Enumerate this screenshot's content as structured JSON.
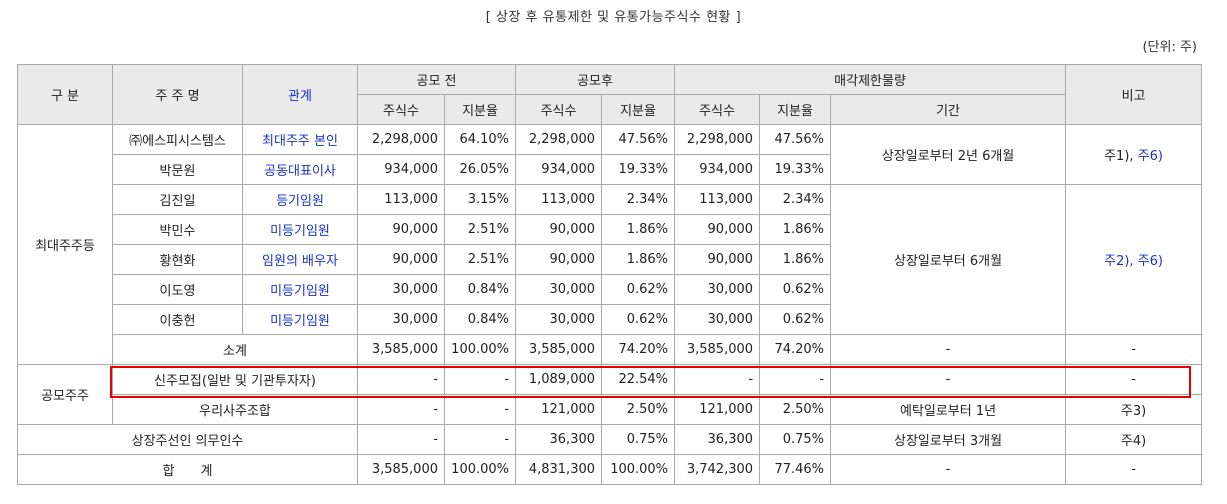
{
  "caption": "[ 상장 후 유통제한 및 유통가능주식수 현황 ]",
  "unit": "(단위: 주)",
  "headers": {
    "category": "구 분",
    "holder": "주 주 명",
    "relation": "관계",
    "before": "공모 전",
    "after": "공모후",
    "restricted": "매각제한물량",
    "note": "비고",
    "shares": "주식수",
    "ratio": "지분율",
    "period": "기간"
  },
  "groups": {
    "largest": "최대주주등",
    "public": "공모주주"
  },
  "rows": [
    {
      "name": "㈜에스피시스템스",
      "relation": "최대주주 본인",
      "b_shares": "2,298,000",
      "b_ratio": "64.10%",
      "a_shares": "2,298,000",
      "a_ratio": "47.56%",
      "r_shares": "2,298,000",
      "r_ratio": "47.56%"
    },
    {
      "name": "박문원",
      "relation": "공동대표이사",
      "b_shares": "934,000",
      "b_ratio": "26.05%",
      "a_shares": "934,000",
      "a_ratio": "19.33%",
      "r_shares": "934,000",
      "r_ratio": "19.33%"
    },
    {
      "name": "김진일",
      "relation": "등기임원",
      "b_shares": "113,000",
      "b_ratio": "3.15%",
      "a_shares": "113,000",
      "a_ratio": "2.34%",
      "r_shares": "113,000",
      "r_ratio": "2.34%"
    },
    {
      "name": "박민수",
      "relation": "미등기임원",
      "b_shares": "90,000",
      "b_ratio": "2.51%",
      "a_shares": "90,000",
      "a_ratio": "1.86%",
      "r_shares": "90,000",
      "r_ratio": "1.86%"
    },
    {
      "name": "황현화",
      "relation": "임원의 배우자",
      "b_shares": "90,000",
      "b_ratio": "2.51%",
      "a_shares": "90,000",
      "a_ratio": "1.86%",
      "r_shares": "90,000",
      "r_ratio": "1.86%"
    },
    {
      "name": "이도영",
      "relation": "미등기임원",
      "b_shares": "30,000",
      "b_ratio": "0.84%",
      "a_shares": "30,000",
      "a_ratio": "0.62%",
      "r_shares": "30,000",
      "r_ratio": "0.62%"
    },
    {
      "name": "이충헌",
      "relation": "미등기임원",
      "b_shares": "30,000",
      "b_ratio": "0.84%",
      "a_shares": "30,000",
      "a_ratio": "0.62%",
      "r_shares": "30,000",
      "r_ratio": "0.62%"
    }
  ],
  "periods": {
    "p1": "상장일로부터 2년 6개월",
    "p2": "상장일로부터 6개월"
  },
  "notes": {
    "n1a": "주1),",
    "n1b": "주6)",
    "n2": "주2), 주6)"
  },
  "subtotal": {
    "label": "소계",
    "b_shares": "3,585,000",
    "b_ratio": "100.00%",
    "a_shares": "3,585,000",
    "a_ratio": "74.20%",
    "r_shares": "3,585,000",
    "r_ratio": "74.20%",
    "period": "-",
    "note": "-"
  },
  "newshares": {
    "label": "신주모집(일반 및 기관투자자)",
    "b_shares": "-",
    "b_ratio": "-",
    "a_shares": "1,089,000",
    "a_ratio": "22.54%",
    "r_shares": "-",
    "r_ratio": "-",
    "period": "-",
    "note": "-"
  },
  "esop": {
    "label": "우리사주조합",
    "b_shares": "-",
    "b_ratio": "-",
    "a_shares": "121,000",
    "a_ratio": "2.50%",
    "r_shares": "121,000",
    "r_ratio": "2.50%",
    "period": "예탁일로부터 1년",
    "note": "주3)"
  },
  "underwriter": {
    "label": "상장주선인 의무인수",
    "b_shares": "-",
    "b_ratio": "-",
    "a_shares": "36,300",
    "a_ratio": "0.75%",
    "r_shares": "36,300",
    "r_ratio": "0.75%",
    "period": "상장일로부터 3개월",
    "note": "주4)"
  },
  "total": {
    "label": "합　　계",
    "b_shares": "3,585,000",
    "b_ratio": "100.00%",
    "a_shares": "4,831,300",
    "a_ratio": "100.00%",
    "r_shares": "3,742,300",
    "r_ratio": "77.46%",
    "period": "-",
    "note": "-"
  }
}
